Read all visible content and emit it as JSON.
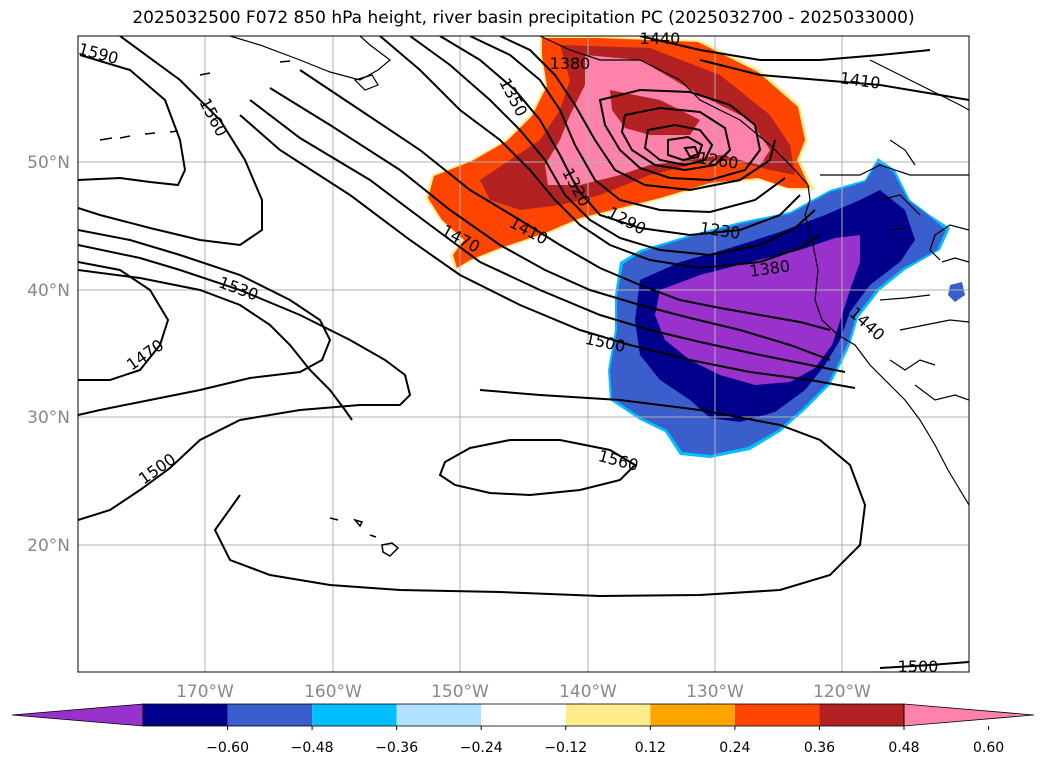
{
  "title": "2025032500 F072 850 hPa height, river basin precipitation PC (2025032700 - 2025033000)",
  "map": {
    "lon_labels": [
      "170°W",
      "160°W",
      "150°W",
      "140°W",
      "130°W",
      "120°W"
    ],
    "lat_labels": [
      "50°N",
      "40°N",
      "30°N",
      "20°N"
    ],
    "contour_labels": [
      "1590",
      "1560",
      "1350",
      "1380",
      "1440",
      "1410",
      "1260",
      "1320",
      "1290",
      "1230",
      "1410",
      "1470",
      "1380",
      "1530",
      "1500",
      "1440",
      "1470",
      "1500",
      "1560",
      "1500"
    ],
    "colors": {
      "neg_060": "#9932cc",
      "neg_048": "#00008b",
      "neg_036": "#3a5fcd",
      "neg_024": "#00bfff",
      "neg_012": "#b0e2ff",
      "zero": "#ffffff",
      "pos_012": "#ffec8b",
      "pos_024": "#ffa500",
      "pos_036": "#ff4500",
      "pos_048": "#b22222",
      "pos_060": "#ff82ab"
    }
  },
  "colorbar": {
    "ticks": [
      "−0.60",
      "−0.48",
      "−0.36",
      "−0.24",
      "−0.12",
      "0.12",
      "0.24",
      "0.36",
      "0.48",
      "0.60"
    ],
    "colors": [
      "#9932cc",
      "#00008b",
      "#3a5fcd",
      "#00bfff",
      "#b0e2ff",
      "#ffffff",
      "#ffec8b",
      "#ffa500",
      "#ff4500",
      "#b22222",
      "#ff82ab"
    ]
  }
}
